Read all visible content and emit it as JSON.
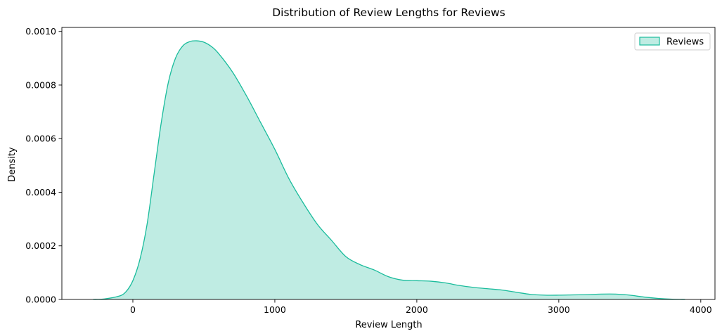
{
  "chart_data": {
    "type": "area",
    "title": "Distribution of Review Lengths for Reviews",
    "xlabel": "Review Length",
    "ylabel": "Density",
    "xlim": [
      -500,
      4100
    ],
    "ylim": [
      0,
      0.001015
    ],
    "xticks": [
      0,
      1000,
      2000,
      3000,
      4000
    ],
    "xtick_labels": [
      "0",
      "1000",
      "2000",
      "3000",
      "4000"
    ],
    "yticks": [
      0,
      0.0002,
      0.0004,
      0.0006,
      0.0008,
      0.001
    ],
    "ytick_labels": [
      "0.0000",
      "0.0002",
      "0.0004",
      "0.0006",
      "0.0008",
      "0.0010"
    ],
    "grid": false,
    "legend_position": "top-right",
    "series": [
      {
        "name": "Reviews",
        "line_color": "#1abc9c",
        "fill_color": "#1abc9c",
        "fill_opacity": 0.28,
        "x": [
          -280,
          -200,
          -100,
          -50,
          0,
          50,
          100,
          150,
          200,
          250,
          300,
          350,
          400,
          450,
          500,
          550,
          600,
          700,
          800,
          900,
          1000,
          1100,
          1200,
          1300,
          1400,
          1500,
          1600,
          1700,
          1800,
          1900,
          2000,
          2100,
          2200,
          2300,
          2400,
          2500,
          2600,
          2700,
          2800,
          2900,
          3000,
          3100,
          3200,
          3300,
          3400,
          3500,
          3600,
          3700,
          3800,
          3890
        ],
        "y": [
          0,
          2e-06,
          1.2e-05,
          2.8e-05,
          7e-05,
          0.00015,
          0.00028,
          0.00047,
          0.00066,
          0.00081,
          0.0009,
          0.000945,
          0.000962,
          0.000965,
          0.00096,
          0.000945,
          0.00092,
          0.00085,
          0.00076,
          0.00066,
          0.00056,
          0.00045,
          0.00036,
          0.00028,
          0.00022,
          0.00016,
          0.00013,
          0.00011,
          8.5e-05,
          7.2e-05,
          7e-05,
          6.8e-05,
          6.2e-05,
          5.2e-05,
          4.5e-05,
          4e-05,
          3.5e-05,
          2.7e-05,
          1.9e-05,
          1.6e-05,
          1.6e-05,
          1.7e-05,
          1.8e-05,
          2e-05,
          2e-05,
          1.6e-05,
          9e-06,
          4e-06,
          1e-06,
          0
        ]
      }
    ]
  }
}
